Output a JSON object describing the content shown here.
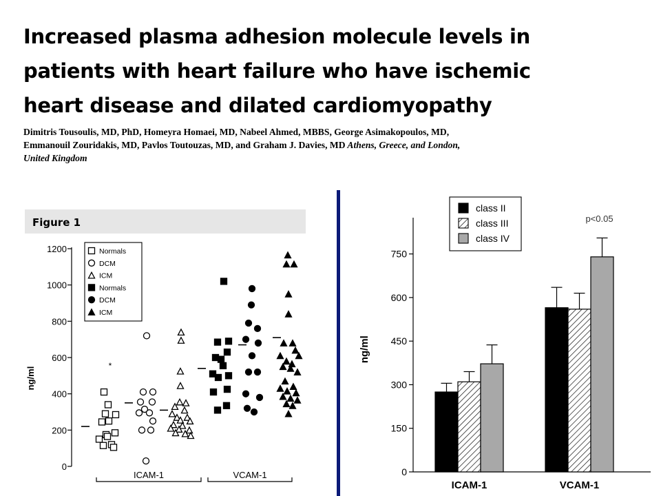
{
  "slide": {
    "title_lines": [
      "Increased plasma adhesion molecule levels in",
      "patients with heart failure who have ischemic",
      "heart disease and dilated cardiomyopathy"
    ],
    "authors_lines": [
      "Dimitris Tousoulis, MD, PhD, Homeyra Homaei, MD, Nabeel Ahmed, MBBS, George Asimakopoulos, MD,",
      "Emmanouil Zouridakis, MD, Pavlos Toutouzas, MD, and Graham J. Davies, MD",
      " Athens, Greece, and London,",
      "United Kingdom"
    ],
    "divider_color": "#0b1a78"
  },
  "chart_data": [
    {
      "type": "scatter",
      "figure_label": "Figure 1",
      "ylabel": "ng/ml",
      "ylim": [
        0,
        1200
      ],
      "yticks": [
        0,
        200,
        400,
        600,
        800,
        1000,
        1200
      ],
      "groups": [
        "ICAM-1",
        "VCAM-1"
      ],
      "legend": [
        {
          "marker": "open-square",
          "label": "Normals"
        },
        {
          "marker": "open-circle",
          "label": "DCM"
        },
        {
          "marker": "open-triangle",
          "label": "ICM"
        },
        {
          "marker": "filled-square",
          "label": "Normals"
        },
        {
          "marker": "filled-circle",
          "label": "DCM"
        },
        {
          "marker": "filled-triangle",
          "label": "ICM"
        }
      ],
      "annotation": "*",
      "series": [
        {
          "group": "ICAM-1",
          "marker": "open-square",
          "mean": 220,
          "points": [
            [
              -9,
              410
            ],
            [
              -3,
              340
            ],
            [
              -7,
              290
            ],
            [
              8,
              285
            ],
            [
              -12,
              245
            ],
            [
              -2,
              250
            ],
            [
              -6,
              175
            ],
            [
              7,
              185
            ],
            [
              -16,
              150
            ],
            [
              -4,
              165
            ],
            [
              2,
              120
            ],
            [
              -10,
              115
            ],
            [
              5,
              105
            ]
          ]
        },
        {
          "group": "ICAM-1",
          "marker": "open-circle",
          "mean": 350,
          "points": [
            [
              0,
              720
            ],
            [
              -5,
              410
            ],
            [
              9,
              410
            ],
            [
              -9,
              355
            ],
            [
              8,
              355
            ],
            [
              -3,
              315
            ],
            [
              -11,
              295
            ],
            [
              4,
              295
            ],
            [
              9,
              250
            ],
            [
              -7,
              200
            ],
            [
              6,
              200
            ],
            [
              -1,
              30
            ]
          ]
        },
        {
          "group": "ICAM-1",
          "marker": "open-triangle",
          "mean": 310,
          "points": [
            [
              -1,
              740
            ],
            [
              -1,
              695
            ],
            [
              -2,
              525
            ],
            [
              -2,
              445
            ],
            [
              -3,
              355
            ],
            [
              6,
              350
            ],
            [
              -10,
              330
            ],
            [
              4,
              310
            ],
            [
              -14,
              290
            ],
            [
              -7,
              270
            ],
            [
              8,
              270
            ],
            [
              -2,
              255
            ],
            [
              12,
              250
            ],
            [
              -12,
              230
            ],
            [
              1,
              225
            ],
            [
              -16,
              210
            ],
            [
              -4,
              205
            ],
            [
              11,
              200
            ],
            [
              -9,
              185
            ],
            [
              5,
              180
            ],
            [
              13,
              170
            ]
          ]
        },
        {
          "group": "VCAM-1",
          "marker": "filled-square",
          "mean": 540,
          "points": [
            [
              3,
              1020
            ],
            [
              10,
              690
            ],
            [
              -6,
              685
            ],
            [
              -9,
              600
            ],
            [
              8,
              630
            ],
            [
              -1,
              590
            ],
            [
              2,
              555
            ],
            [
              -13,
              510
            ],
            [
              10,
              500
            ],
            [
              -5,
              490
            ],
            [
              8,
              425
            ],
            [
              -12,
              410
            ],
            [
              7,
              335
            ],
            [
              -6,
              310
            ]
          ]
        },
        {
          "group": "VCAM-1",
          "marker": "filled-circle",
          "mean": 670,
          "points": [
            [
              1,
              980
            ],
            [
              0,
              890
            ],
            [
              -4,
              790
            ],
            [
              9,
              760
            ],
            [
              -8,
              700
            ],
            [
              10,
              680
            ],
            [
              1,
              610
            ],
            [
              -4,
              520
            ],
            [
              9,
              520
            ],
            [
              -8,
              400
            ],
            [
              12,
              380
            ],
            [
              -6,
              320
            ],
            [
              4,
              300
            ]
          ]
        },
        {
          "group": "VCAM-1",
          "marker": "filled-triangle",
          "mean": 710,
          "points": [
            [
              -2,
              1165
            ],
            [
              -4,
              1115
            ],
            [
              7,
              1115
            ],
            [
              -1,
              950
            ],
            [
              -1,
              840
            ],
            [
              -8,
              680
            ],
            [
              5,
              680
            ],
            [
              9,
              640
            ],
            [
              -13,
              610
            ],
            [
              14,
              610
            ],
            [
              -4,
              580
            ],
            [
              4,
              565
            ],
            [
              -9,
              550
            ],
            [
              2,
              540
            ],
            [
              12,
              520
            ],
            [
              -6,
              470
            ],
            [
              -13,
              430
            ],
            [
              6,
              440
            ],
            [
              -3,
              415
            ],
            [
              10,
              405
            ],
            [
              -9,
              385
            ],
            [
              2,
              375
            ],
            [
              12,
              365
            ],
            [
              -4,
              345
            ],
            [
              5,
              335
            ],
            [
              -1,
              290
            ]
          ]
        }
      ]
    },
    {
      "type": "bar",
      "ylabel": "ng/ml",
      "ylim": [
        0,
        870
      ],
      "yticks": [
        0,
        150,
        300,
        450,
        600,
        750
      ],
      "categories": [
        "ICAM-1",
        "VCAM-1"
      ],
      "annotation": "p<0.05",
      "series": [
        {
          "name": "class II",
          "fill": "solid-black",
          "values": [
            275,
            565
          ],
          "errors": [
            30,
            70
          ]
        },
        {
          "name": "class III",
          "fill": "hatched",
          "values": [
            310,
            560
          ],
          "errors": [
            35,
            55
          ]
        },
        {
          "name": "class IV",
          "fill": "solid-gray",
          "values": [
            372,
            740
          ],
          "errors": [
            65,
            65
          ]
        }
      ]
    }
  ]
}
